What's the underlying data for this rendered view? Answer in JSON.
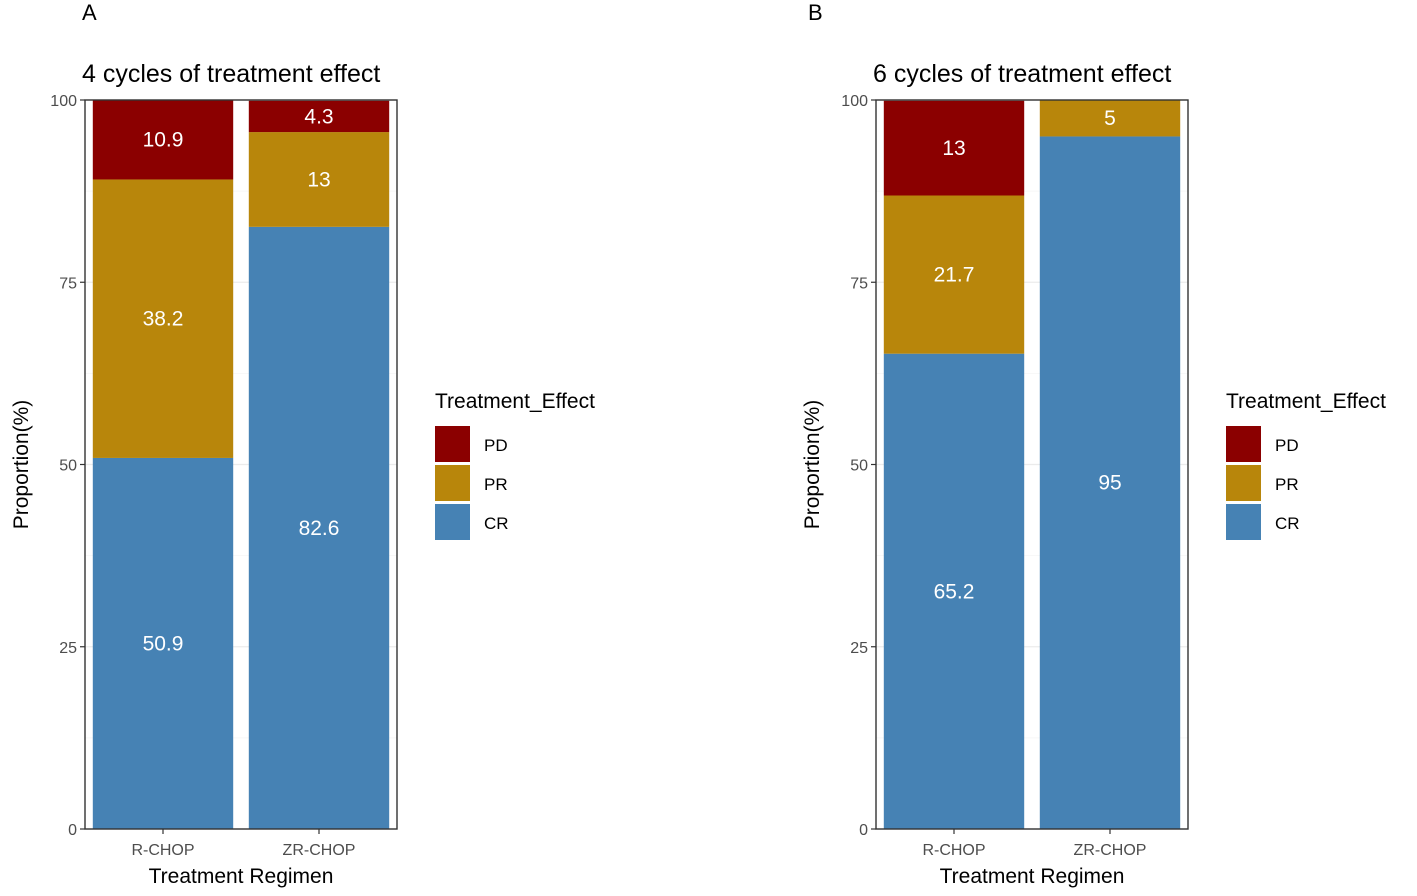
{
  "figure": {
    "domain": "Chart"
  },
  "chart_data": [
    {
      "panel_letter": "A",
      "type": "bar",
      "stacked": true,
      "title": "4 cycles of treatment effect",
      "xlabel": "Treatment Regimen",
      "ylabel": "Proportion(%)",
      "ylim": [
        0,
        100
      ],
      "yticks": [
        "0",
        "25",
        "50",
        "75",
        "100"
      ],
      "categories": [
        "R-CHOP",
        "ZR-CHOP"
      ],
      "series": [
        {
          "name": "CR",
          "values": [
            50.9,
            82.6
          ],
          "labels": [
            "50.9",
            "82.6"
          ]
        },
        {
          "name": "PR",
          "values": [
            38.2,
            13
          ],
          "labels": [
            "38.2",
            "13"
          ]
        },
        {
          "name": "PD",
          "values": [
            10.9,
            4.3
          ],
          "labels": [
            "10.9",
            "4.3"
          ]
        }
      ],
      "legend": {
        "title": "Treatment_Effect",
        "entries": [
          "PD",
          "PR",
          "CR"
        ],
        "position": "right"
      },
      "grid": true
    },
    {
      "panel_letter": "B",
      "type": "bar",
      "stacked": true,
      "title": "6 cycles of treatment effect",
      "xlabel": "Treatment Regimen",
      "ylabel": "Proportion(%)",
      "ylim": [
        0,
        100
      ],
      "yticks": [
        "0",
        "25",
        "50",
        "75",
        "100"
      ],
      "categories": [
        "R-CHOP",
        "ZR-CHOP"
      ],
      "series": [
        {
          "name": "CR",
          "values": [
            65.2,
            95
          ],
          "labels": [
            "65.2",
            "95"
          ]
        },
        {
          "name": "PR",
          "values": [
            21.7,
            5
          ],
          "labels": [
            "21.7",
            "5"
          ]
        },
        {
          "name": "PD",
          "values": [
            13,
            0
          ],
          "labels": [
            "13",
            ""
          ]
        }
      ],
      "legend": {
        "title": "Treatment_Effect",
        "entries": [
          "PD",
          "PR",
          "CR"
        ],
        "position": "right"
      },
      "grid": true
    }
  ],
  "colors": {
    "CR": "#4682b4",
    "PR": "#b8860b",
    "PD": "#8b0000"
  }
}
